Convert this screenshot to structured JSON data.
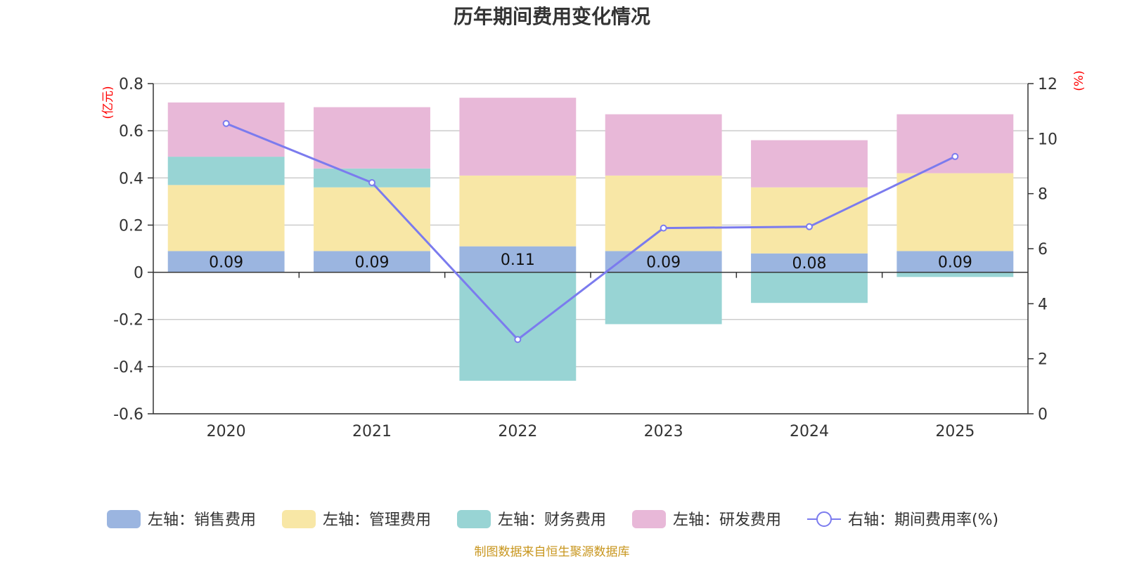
{
  "chart_data": {
    "type": "bar",
    "stacked": true,
    "title": "历年期间费用变化情况",
    "categories": [
      "2020",
      "2021",
      "2022",
      "2023",
      "2024",
      "2025"
    ],
    "series": [
      {
        "name": "左轴：销售费用",
        "axis": "left",
        "color": "#9bb5e0",
        "values": [
          0.09,
          0.09,
          0.11,
          0.09,
          0.08,
          0.09
        ],
        "labels": [
          "0.09",
          "0.09",
          "0.11",
          "0.09",
          "0.08",
          "0.09"
        ]
      },
      {
        "name": "左轴：管理费用",
        "axis": "left",
        "color": "#f8e7a6",
        "values": [
          0.28,
          0.27,
          0.3,
          0.32,
          0.28,
          0.33
        ]
      },
      {
        "name": "左轴：财务费用",
        "axis": "left",
        "color": "#98d4d4",
        "values": [
          0.12,
          0.08,
          -0.46,
          -0.22,
          -0.13,
          -0.02
        ]
      },
      {
        "name": "左轴：研发费用",
        "axis": "left",
        "color": "#e8b8d8",
        "values": [
          0.23,
          0.26,
          0.33,
          0.26,
          0.2,
          0.25
        ]
      },
      {
        "name": "右轴：期间费用率(%)",
        "axis": "right",
        "type": "line",
        "color": "#7b7bee",
        "values": [
          10.55,
          8.4,
          2.7,
          6.75,
          6.8,
          9.35
        ]
      }
    ],
    "left_axis": {
      "unit": "(亿元)",
      "min": -0.6,
      "max": 0.8,
      "ticks": [
        "-0.6",
        "-0.4",
        "-0.2",
        "0",
        "0.2",
        "0.4",
        "0.6",
        "0.8"
      ]
    },
    "right_axis": {
      "unit": "(%)",
      "min": 0,
      "max": 12,
      "ticks": [
        "0",
        "2",
        "4",
        "6",
        "8",
        "10",
        "12"
      ]
    },
    "legend_position": "bottom",
    "grid": true
  },
  "source_text": "制图数据来自恒生聚源数据库"
}
